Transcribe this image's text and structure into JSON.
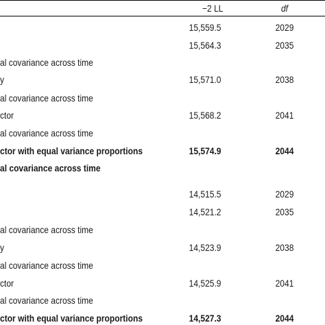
{
  "table": {
    "header": {
      "ll": "−2 LL",
      "df": "df"
    },
    "rows": [
      {
        "label": "",
        "ll": "15,559.5",
        "df": "2029",
        "bold": false
      },
      {
        "label": "",
        "ll": "15,564.3",
        "df": "2035",
        "bold": false
      },
      {
        "label": "al covariance across time",
        "ll": "",
        "df": "",
        "bold": false
      },
      {
        "label": "y",
        "ll": "15,571.0",
        "df": "2038",
        "bold": false
      },
      {
        "label": "al covariance across time",
        "ll": "",
        "df": "",
        "bold": false
      },
      {
        "label": "ctor",
        "ll": "15,568.2",
        "df": "2041",
        "bold": false
      },
      {
        "label": "al covariance across time",
        "ll": "",
        "df": "",
        "bold": false
      },
      {
        "label": "ctor with equal variance proportions",
        "ll": "15,574.9",
        "df": "2044",
        "bold": true
      },
      {
        "label": "al covariance across time",
        "ll": "",
        "df": "",
        "bold": true
      },
      {
        "label": "",
        "ll": "14,515.5",
        "df": "2029",
        "bold": false
      },
      {
        "label": "",
        "ll": "14,521.2",
        "df": "2035",
        "bold": false
      },
      {
        "label": "al covariance across time",
        "ll": "",
        "df": "",
        "bold": false
      },
      {
        "label": "y",
        "ll": "14,523.9",
        "df": "2038",
        "bold": false
      },
      {
        "label": "al covariance across time",
        "ll": "",
        "df": "",
        "bold": false
      },
      {
        "label": "ctor",
        "ll": "14,525.9",
        "df": "2041",
        "bold": false
      },
      {
        "label": "al covariance across time",
        "ll": "",
        "df": "",
        "bold": false
      },
      {
        "label": "ctor with equal variance proportions",
        "ll": "14,527.3",
        "df": "2044",
        "bold": true
      }
    ]
  }
}
